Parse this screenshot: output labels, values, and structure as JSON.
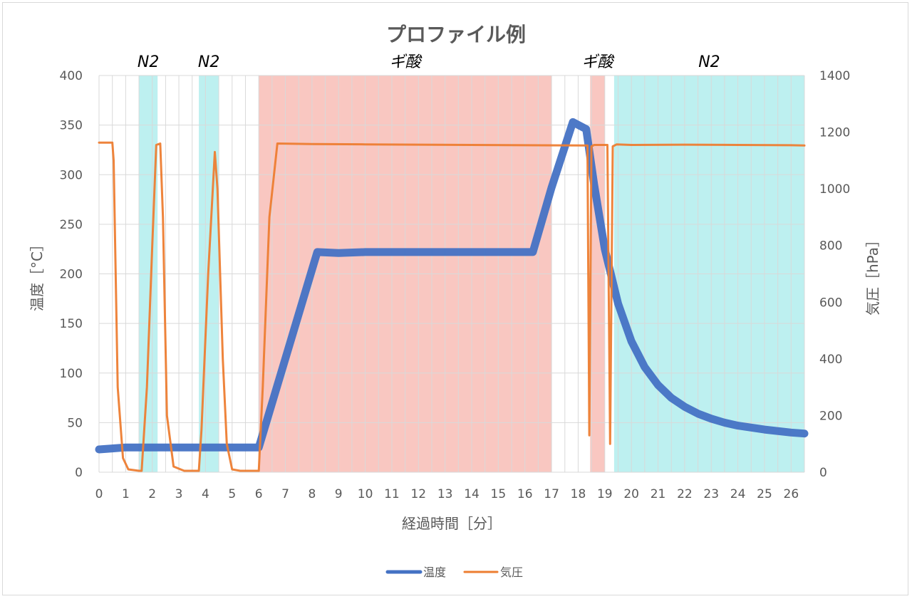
{
  "chart_data": {
    "type": "line",
    "title": "プロファイル例",
    "xlabel": "経過時間［分］",
    "ylabel_left": "温度［°C］",
    "ylabel_right": "気圧［hPa］",
    "xlim": [
      0,
      26.5
    ],
    "ylim_left": [
      0,
      400
    ],
    "ylim_right": [
      0,
      1400
    ],
    "x_ticks": [
      "0",
      "1",
      "2",
      "3",
      "4",
      "5",
      "6",
      "7",
      "8",
      "9",
      "10",
      "11",
      "12",
      "13",
      "14",
      "15",
      "16",
      "17",
      "18",
      "19",
      "20",
      "21",
      "22",
      "23",
      "24",
      "25",
      "26"
    ],
    "y_ticks_left": [
      "0",
      "50",
      "100",
      "150",
      "200",
      "250",
      "300",
      "350",
      "400"
    ],
    "y_ticks_right": [
      "0",
      "200",
      "400",
      "600",
      "800",
      "1000",
      "1200",
      "1400"
    ],
    "grid": "vertical minor and horizontal major",
    "legend_position": "bottom",
    "bands": [
      {
        "label": "N2",
        "x0": 1.5,
        "x1": 2.2,
        "color": "#bdf0f0"
      },
      {
        "label": "N2",
        "x0": 3.75,
        "x1": 4.5,
        "color": "#bdf0f0"
      },
      {
        "label": "ギ酸",
        "x0": 6.0,
        "x1": 17.0,
        "color": "#f9c7c1"
      },
      {
        "label": "ギ酸",
        "x0": 18.45,
        "x1": 19.0,
        "color": "#f9c7c1"
      },
      {
        "label": "N2",
        "x0": 19.35,
        "x1": 26.5,
        "color": "#bdf0f0"
      }
    ],
    "series": [
      {
        "name": "温度",
        "axis": "left",
        "color": "#4472c4",
        "x": [
          0,
          0.5,
          1,
          2,
          3,
          4,
          5,
          6,
          8.2,
          9,
          10,
          12,
          14,
          16,
          16.3,
          17.0,
          17.8,
          18.3,
          18.6,
          19.0,
          19.5,
          20.0,
          20.5,
          21.0,
          21.5,
          22.0,
          22.5,
          23.0,
          23.5,
          24.0,
          25.0,
          26.0,
          26.5
        ],
        "values": [
          23,
          24,
          25,
          25,
          25,
          25,
          25,
          25,
          222,
          221,
          222,
          222,
          222,
          222,
          222,
          287,
          353,
          346,
          290,
          225,
          170,
          132,
          106,
          88,
          75,
          66,
          59,
          54,
          50,
          47,
          43,
          40,
          39
        ]
      },
      {
        "name": "気圧",
        "axis": "right",
        "color": "#ed7d31",
        "x": [
          0,
          0.5,
          0.55,
          0.7,
          0.9,
          1.1,
          1.5,
          1.6,
          1.8,
          2.0,
          2.15,
          2.3,
          2.4,
          2.55,
          2.8,
          3.2,
          3.75,
          3.85,
          4.1,
          4.35,
          4.45,
          4.65,
          4.8,
          5.0,
          5.3,
          6.0,
          6.15,
          6.4,
          6.7,
          8,
          10,
          12,
          14,
          16,
          18.35,
          18.42,
          18.5,
          18.6,
          19.1,
          19.2,
          19.3,
          19.45,
          20,
          22,
          24,
          26,
          26.5
        ],
        "values": [
          1163,
          1163,
          1100,
          300,
          50,
          10,
          5,
          5,
          300,
          800,
          1155,
          1160,
          900,
          200,
          20,
          5,
          5,
          150,
          700,
          1130,
          1000,
          400,
          100,
          10,
          5,
          5,
          300,
          900,
          1160,
          1158,
          1157,
          1156,
          1155,
          1154,
          1153,
          130,
          1150,
          1155,
          1155,
          100,
          1150,
          1157,
          1155,
          1156,
          1155,
          1154,
          1153
        ]
      }
    ]
  },
  "legend": {
    "items": [
      {
        "label": "温度",
        "color": "#4472c4"
      },
      {
        "label": "気圧",
        "color": "#ed7d31"
      }
    ]
  }
}
